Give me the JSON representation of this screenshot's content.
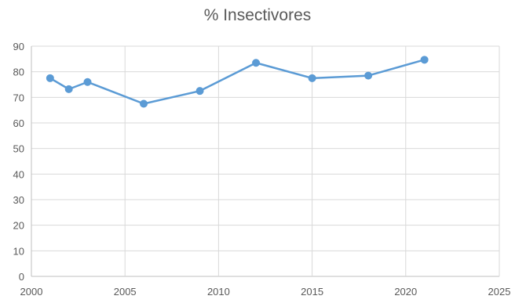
{
  "chart_data": {
    "type": "line",
    "title": "% Insectivores",
    "xlabel": "",
    "ylabel": "",
    "xlim": [
      2000,
      2025
    ],
    "ylim": [
      0,
      90
    ],
    "x_ticks": [
      2000,
      2005,
      2010,
      2015,
      2020,
      2025
    ],
    "y_ticks": [
      0,
      10,
      20,
      30,
      40,
      50,
      60,
      70,
      80,
      90
    ],
    "grid": true,
    "series": [
      {
        "color": "#5B9BD5",
        "x": [
          2001,
          2002,
          2003,
          2006,
          2009,
          2012,
          2015,
          2018,
          2021
        ],
        "y": [
          77.5,
          73.2,
          76.0,
          67.5,
          72.5,
          83.5,
          77.5,
          78.5,
          84.7
        ]
      }
    ]
  }
}
